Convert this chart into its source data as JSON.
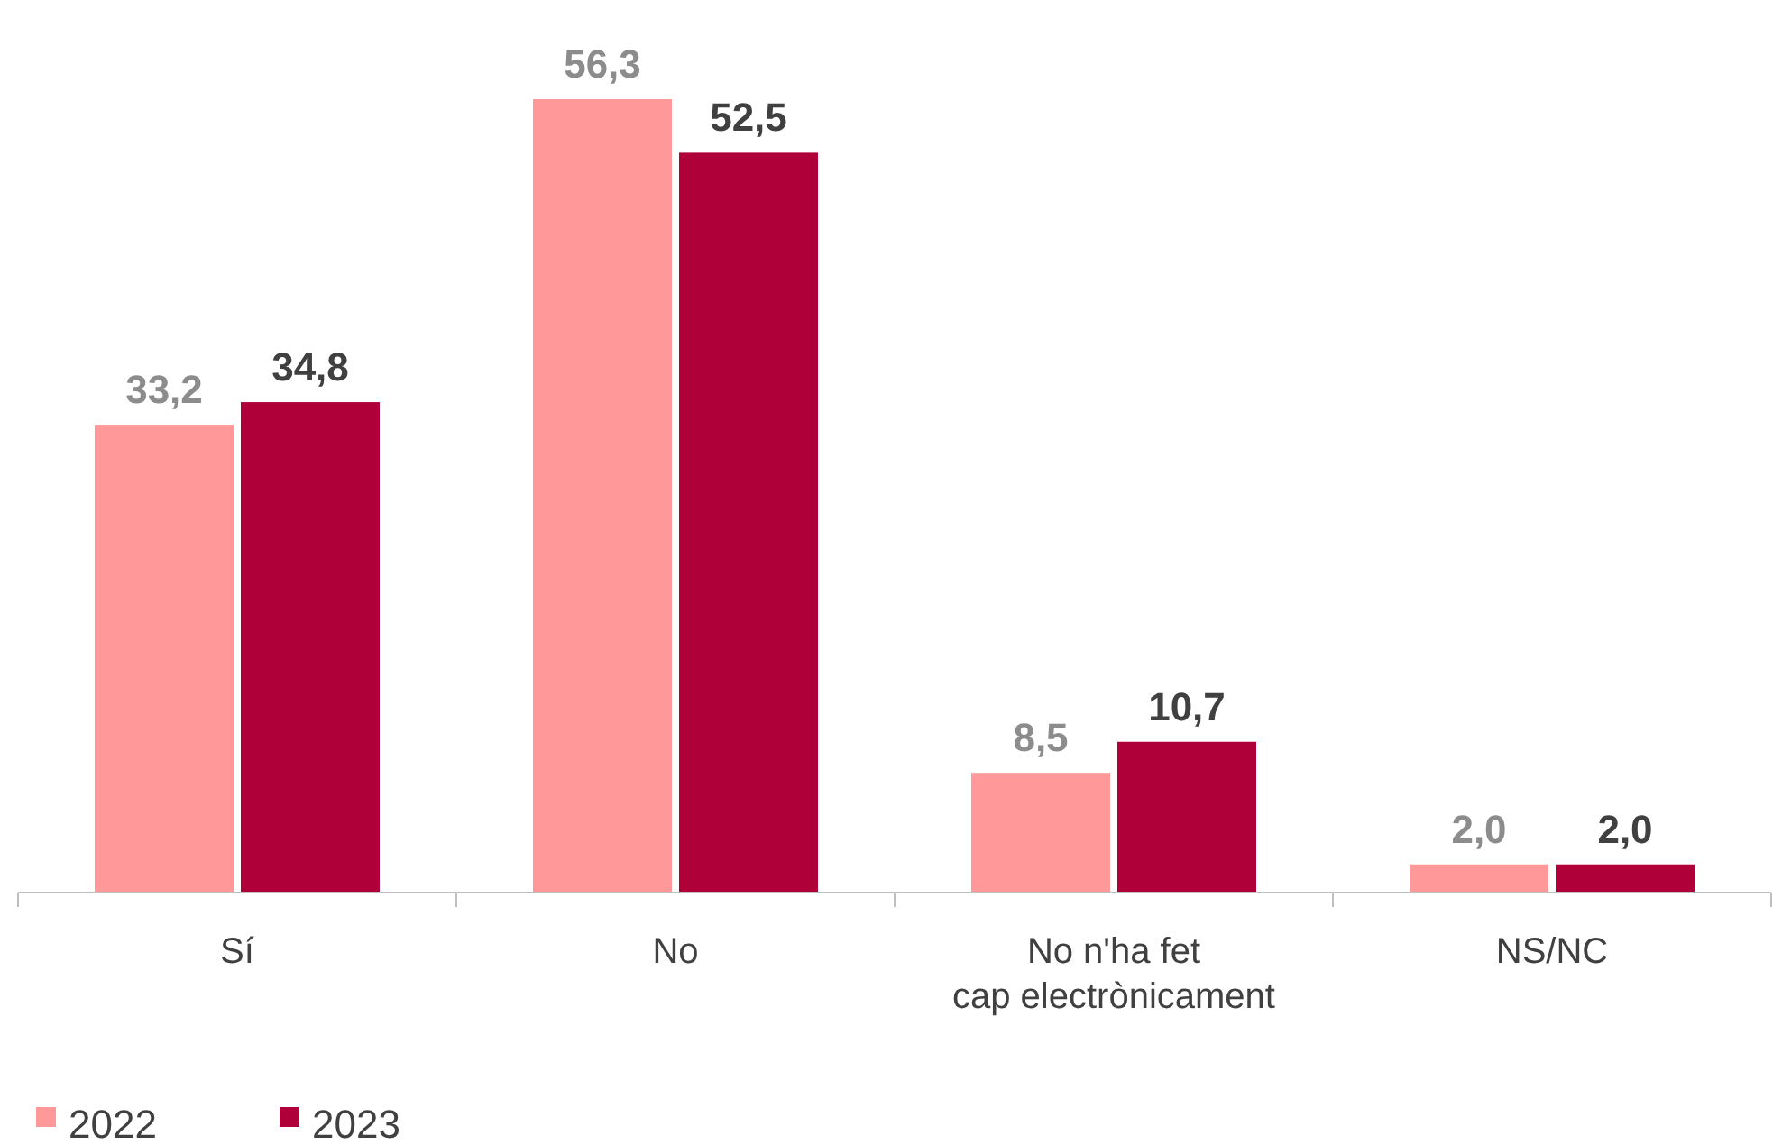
{
  "chart_data": {
    "type": "bar",
    "categories": [
      "Sí",
      "No",
      "No n'ha fet\ncap electrònicament",
      "NS/NC"
    ],
    "series": [
      {
        "name": "2022",
        "color": "#ff9999",
        "values": [
          33.2,
          56.3,
          8.5,
          2.0
        ],
        "value_labels": [
          "33,2",
          "56,3",
          "8,5",
          "2,0"
        ]
      },
      {
        "name": "2023",
        "color": "#b0003a",
        "values": [
          34.8,
          52.5,
          10.7,
          2.0
        ],
        "value_labels": [
          "34,8",
          "52,5",
          "10,7",
          "2,0"
        ]
      }
    ],
    "legend": "bottom"
  }
}
